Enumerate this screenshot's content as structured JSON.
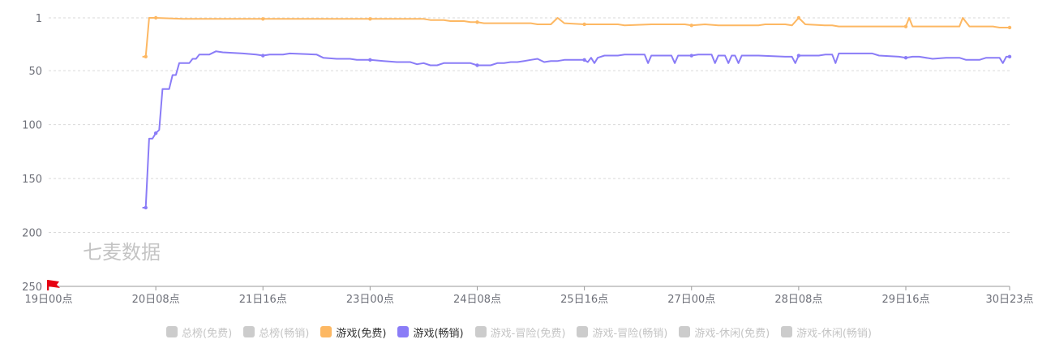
{
  "watermark": "七麦数据",
  "chart_data": {
    "type": "line",
    "title": "",
    "xlabel": "",
    "ylabel": "",
    "y_inverted": true,
    "ylim": [
      1,
      250
    ],
    "yticks": [
      1,
      50,
      100,
      150,
      200,
      250
    ],
    "x_range_hours": [
      0,
      287
    ],
    "xticks": [
      {
        "label": "19日00点",
        "hour": 0
      },
      {
        "label": "20日08点",
        "hour": 32
      },
      {
        "label": "21日16点",
        "hour": 64
      },
      {
        "label": "23日00点",
        "hour": 96
      },
      {
        "label": "24日08点",
        "hour": 128
      },
      {
        "label": "25日16点",
        "hour": 160
      },
      {
        "label": "27日00点",
        "hour": 192
      },
      {
        "label": "28日08点",
        "hour": 224
      },
      {
        "label": "29日16点",
        "hour": 256
      },
      {
        "label": "30日23点",
        "hour": 287
      }
    ],
    "grid": true,
    "legend_position": "bottom",
    "series": [
      {
        "name": "游戏(免费)",
        "color": "#fdb863",
        "points": [
          [
            28,
            37
          ],
          [
            29,
            37
          ],
          [
            30,
            1
          ],
          [
            32,
            1
          ],
          [
            40,
            2
          ],
          [
            64,
            2
          ],
          [
            96,
            2
          ],
          [
            112,
            2
          ],
          [
            114,
            3
          ],
          [
            118,
            3
          ],
          [
            120,
            4
          ],
          [
            124,
            4
          ],
          [
            126,
            5
          ],
          [
            128,
            5
          ],
          [
            130,
            6
          ],
          [
            144,
            6
          ],
          [
            146,
            7
          ],
          [
            150,
            7
          ],
          [
            152,
            1
          ],
          [
            154,
            6
          ],
          [
            160,
            7
          ],
          [
            170,
            7
          ],
          [
            172,
            8
          ],
          [
            180,
            7
          ],
          [
            190,
            7
          ],
          [
            192,
            8
          ],
          [
            196,
            7
          ],
          [
            200,
            8
          ],
          [
            212,
            8
          ],
          [
            214,
            7
          ],
          [
            220,
            7
          ],
          [
            222,
            8
          ],
          [
            224,
            1
          ],
          [
            226,
            7
          ],
          [
            232,
            8
          ],
          [
            234,
            8
          ],
          [
            236,
            9
          ],
          [
            254,
            9
          ],
          [
            256,
            9
          ],
          [
            257,
            1
          ],
          [
            258,
            9
          ],
          [
            262,
            9
          ],
          [
            272,
            9
          ],
          [
            273,
            1
          ],
          [
            275,
            9
          ],
          [
            282,
            9
          ],
          [
            284,
            10
          ],
          [
            287,
            10
          ]
        ]
      },
      {
        "name": "游戏(畅销)",
        "color": "#8a7cf7",
        "points": [
          [
            28,
            177
          ],
          [
            29,
            177
          ],
          [
            30,
            113
          ],
          [
            31,
            113
          ],
          [
            32,
            108
          ],
          [
            33,
            105
          ],
          [
            34,
            67
          ],
          [
            36,
            67
          ],
          [
            37,
            54
          ],
          [
            38,
            54
          ],
          [
            39,
            43
          ],
          [
            42,
            43
          ],
          [
            43,
            39
          ],
          [
            44,
            39
          ],
          [
            45,
            35
          ],
          [
            48,
            35
          ],
          [
            50,
            32
          ],
          [
            52,
            33
          ],
          [
            58,
            34
          ],
          [
            62,
            35
          ],
          [
            64,
            36
          ],
          [
            66,
            35
          ],
          [
            70,
            35
          ],
          [
            72,
            34
          ],
          [
            80,
            35
          ],
          [
            82,
            38
          ],
          [
            86,
            39
          ],
          [
            90,
            39
          ],
          [
            92,
            40
          ],
          [
            96,
            40
          ],
          [
            100,
            41
          ],
          [
            104,
            42
          ],
          [
            108,
            42
          ],
          [
            110,
            44
          ],
          [
            112,
            43
          ],
          [
            114,
            45
          ],
          [
            116,
            45
          ],
          [
            118,
            43
          ],
          [
            126,
            43
          ],
          [
            128,
            45
          ],
          [
            132,
            45
          ],
          [
            134,
            43
          ],
          [
            136,
            43
          ],
          [
            138,
            42
          ],
          [
            140,
            42
          ],
          [
            142,
            41
          ],
          [
            144,
            40
          ],
          [
            146,
            39
          ],
          [
            148,
            42
          ],
          [
            150,
            41
          ],
          [
            152,
            41
          ],
          [
            154,
            40
          ],
          [
            158,
            40
          ],
          [
            160,
            40
          ],
          [
            161,
            42
          ],
          [
            162,
            38
          ],
          [
            163,
            43
          ],
          [
            164,
            38
          ],
          [
            166,
            36
          ],
          [
            170,
            36
          ],
          [
            172,
            35
          ],
          [
            176,
            35
          ],
          [
            178,
            35
          ],
          [
            179,
            43
          ],
          [
            180,
            36
          ],
          [
            186,
            36
          ],
          [
            187,
            43
          ],
          [
            188,
            36
          ],
          [
            192,
            36
          ],
          [
            194,
            35
          ],
          [
            198,
            35
          ],
          [
            199,
            43
          ],
          [
            200,
            36
          ],
          [
            202,
            36
          ],
          [
            203,
            43
          ],
          [
            204,
            36
          ],
          [
            205,
            36
          ],
          [
            206,
            43
          ],
          [
            207,
            36
          ],
          [
            212,
            36
          ],
          [
            220,
            37
          ],
          [
            222,
            37
          ],
          [
            223,
            43
          ],
          [
            224,
            36
          ],
          [
            226,
            36
          ],
          [
            230,
            36
          ],
          [
            232,
            35
          ],
          [
            234,
            35
          ],
          [
            235,
            43
          ],
          [
            236,
            34
          ],
          [
            246,
            34
          ],
          [
            248,
            36
          ],
          [
            254,
            37
          ],
          [
            256,
            38
          ],
          [
            258,
            37
          ],
          [
            260,
            37
          ],
          [
            264,
            39
          ],
          [
            268,
            38
          ],
          [
            272,
            38
          ],
          [
            274,
            40
          ],
          [
            278,
            40
          ],
          [
            280,
            38
          ],
          [
            282,
            38
          ],
          [
            284,
            38
          ],
          [
            285,
            43
          ],
          [
            286,
            37
          ],
          [
            287,
            37
          ]
        ]
      }
    ]
  },
  "legend": [
    {
      "name": "总榜(免费)",
      "active": false,
      "color": "#cccccc"
    },
    {
      "name": "总榜(畅销)",
      "active": false,
      "color": "#cccccc"
    },
    {
      "name": "游戏(免费)",
      "active": true,
      "color": "#fdb863"
    },
    {
      "name": "游戏(畅销)",
      "active": true,
      "color": "#8a7cf7"
    },
    {
      "name": "游戏-冒险(免费)",
      "active": false,
      "color": "#cccccc"
    },
    {
      "name": "游戏-冒险(畅销)",
      "active": false,
      "color": "#cccccc"
    },
    {
      "name": "游戏-休闲(免费)",
      "active": false,
      "color": "#cccccc"
    },
    {
      "name": "游戏-休闲(畅销)",
      "active": false,
      "color": "#cccccc"
    }
  ]
}
